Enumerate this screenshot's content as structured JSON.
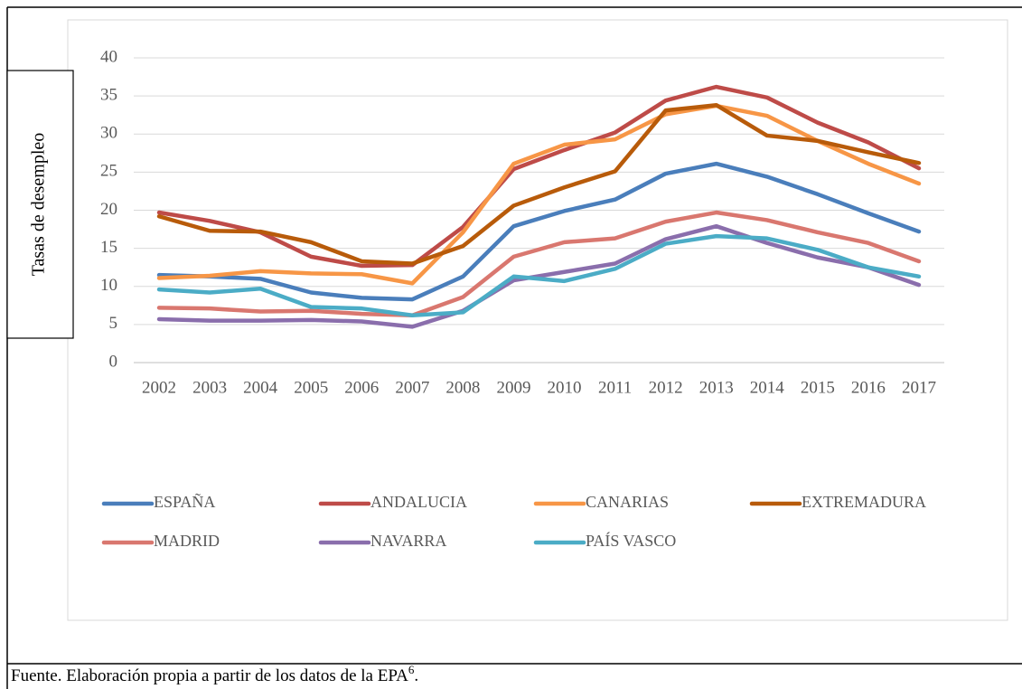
{
  "chart_data": {
    "type": "line",
    "y_axis_label": "Tasas de desempleo",
    "categories": [
      "2002",
      "2003",
      "2004",
      "2005",
      "2006",
      "2007",
      "2008",
      "2009",
      "2010",
      "2011",
      "2012",
      "2013",
      "2014",
      "2015",
      "2016",
      "2017"
    ],
    "series": [
      {
        "name": "ESPAÑA",
        "color": "#4a7ebb",
        "values": [
          11.5,
          11.3,
          11.0,
          9.2,
          8.5,
          8.3,
          11.3,
          17.9,
          19.9,
          21.4,
          24.8,
          26.1,
          24.4,
          22.1,
          19.6,
          17.2
        ]
      },
      {
        "name": "ANDALUCIA",
        "color": "#be4b48",
        "values": [
          19.7,
          18.6,
          17.1,
          13.9,
          12.7,
          12.8,
          17.8,
          25.4,
          27.9,
          30.2,
          34.4,
          36.2,
          34.8,
          31.5,
          28.9,
          25.5
        ]
      },
      {
        "name": "CANARIAS",
        "color": "#f79646",
        "values": [
          11.1,
          11.4,
          12.0,
          11.7,
          11.6,
          10.4,
          17.1,
          26.1,
          28.6,
          29.3,
          32.6,
          33.7,
          32.4,
          29.1,
          26.1,
          23.5
        ]
      },
      {
        "name": "EXTREMADURA",
        "color": "#b85b0a",
        "values": [
          19.2,
          17.3,
          17.2,
          15.8,
          13.3,
          13.0,
          15.3,
          20.6,
          23.0,
          25.1,
          33.1,
          33.8,
          29.8,
          29.1,
          27.6,
          26.2
        ]
      },
      {
        "name": "MADRID",
        "color": "#d9776f",
        "values": [
          7.2,
          7.1,
          6.7,
          6.8,
          6.4,
          6.2,
          8.6,
          13.9,
          15.8,
          16.3,
          18.5,
          19.7,
          18.7,
          17.1,
          15.7,
          13.3
        ]
      },
      {
        "name": "NAVARRA",
        "color": "#8a6eac",
        "values": [
          5.7,
          5.5,
          5.5,
          5.6,
          5.4,
          4.7,
          6.8,
          10.8,
          11.9,
          13.0,
          16.2,
          17.9,
          15.7,
          13.8,
          12.5,
          10.2
        ]
      },
      {
        "name": "PAÍS VASCO",
        "color": "#4bacc6",
        "values": [
          9.6,
          9.2,
          9.7,
          7.3,
          7.1,
          6.2,
          6.6,
          11.3,
          10.7,
          12.3,
          15.6,
          16.6,
          16.3,
          14.8,
          12.5,
          11.3
        ]
      }
    ],
    "ylim": [
      0,
      40
    ],
    "yticks": [
      0,
      5,
      10,
      15,
      20,
      25,
      30,
      35,
      40
    ],
    "grid": true,
    "source": {
      "text": "Fuente. Elaboración propia a partir de los datos de la EPA",
      "footnote": "6",
      "end": "."
    }
  }
}
